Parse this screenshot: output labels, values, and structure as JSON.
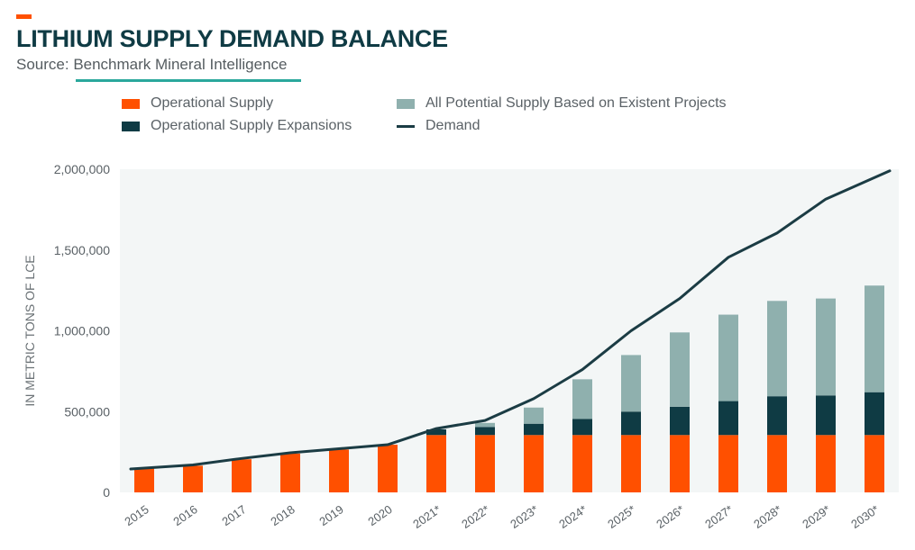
{
  "header": {
    "title": "LITHIUM SUPPLY DEMAND BALANCE",
    "source_prefix": "Source: ",
    "source_name": "Benchmark Mineral Intelligence"
  },
  "colors": {
    "accent": "#ff5000",
    "operational": "#ff5000",
    "expansions": "#0f3b44",
    "potential": "#8fb0ae",
    "demand": "#1b3c44",
    "plot_bg": "#f3f6f6",
    "title": "#0f3b44",
    "underline": "#2aa89c"
  },
  "chart_data": {
    "type": "bar",
    "stacked": true,
    "categories": [
      "2015",
      "2016",
      "2017",
      "2018",
      "2019",
      "2020",
      "2021*",
      "2022*",
      "2023*",
      "2024*",
      "2025*",
      "2026*",
      "2027*",
      "2028*",
      "2029*",
      "2030*"
    ],
    "series": [
      {
        "name": "Operational Supply",
        "kind": "bar",
        "color": "#ff5000",
        "values": [
          150000,
          165000,
          205000,
          240000,
          265000,
          295000,
          355000,
          355000,
          355000,
          355000,
          355000,
          355000,
          355000,
          355000,
          355000,
          355000
        ]
      },
      {
        "name": "Operational Supply Expansions",
        "kind": "bar",
        "color": "#0f3b44",
        "values": [
          0,
          0,
          0,
          0,
          0,
          0,
          35000,
          50000,
          70000,
          100000,
          145000,
          175000,
          210000,
          240000,
          245000,
          265000
        ]
      },
      {
        "name": "All Potential Supply Based on Existent Projects",
        "kind": "bar",
        "color": "#8fb0ae",
        "values": [
          0,
          0,
          0,
          0,
          0,
          0,
          0,
          25000,
          100000,
          245000,
          350000,
          460000,
          535000,
          590000,
          600000,
          660000
        ]
      },
      {
        "name": "Demand",
        "kind": "line",
        "color": "#1b3c44",
        "values": [
          145000,
          170000,
          210000,
          245000,
          270000,
          295000,
          395000,
          445000,
          580000,
          760000,
          1000000,
          1200000,
          1455000,
          1605000,
          1815000,
          1990000
        ]
      }
    ],
    "ylabel": "IN METRIC TONS OF LCE",
    "ylim": [
      0,
      2000000
    ],
    "yticks": [
      0,
      500000,
      1000000,
      1500000,
      2000000
    ],
    "ytick_labels": [
      "0",
      "500,000",
      "1,000,000",
      "1,500,000",
      "2,000,000"
    ],
    "legend_position": "top",
    "grid": false
  }
}
